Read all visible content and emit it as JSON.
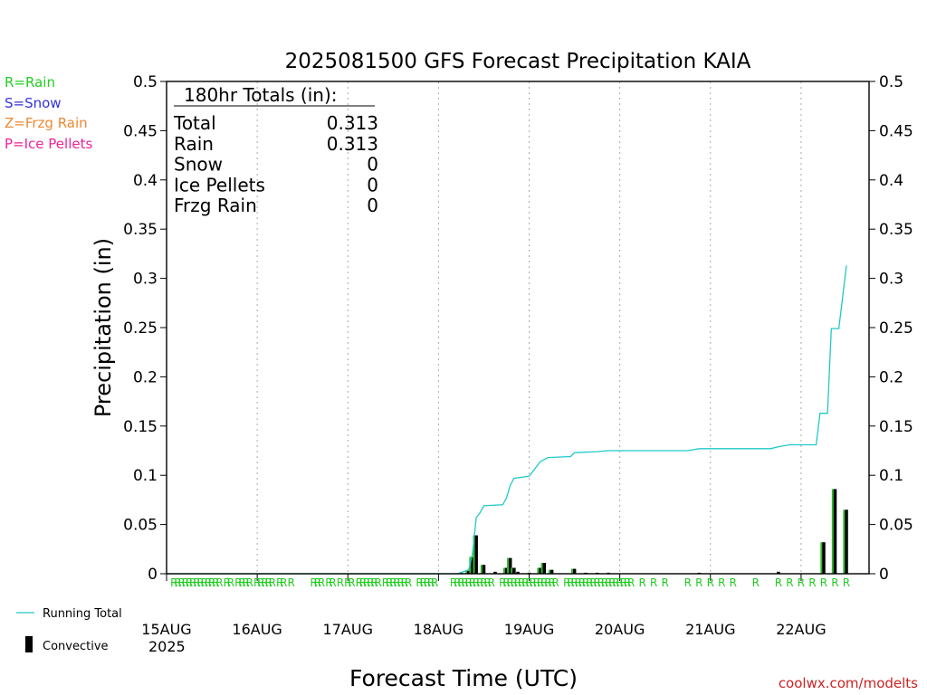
{
  "chart_data": {
    "type": "bar",
    "title": "2025081500 GFS Forecast Precipitation KAIA",
    "xlabel": "Forecast Time (UTC)",
    "ylabel": "Precipitation (in)",
    "ylim": [
      0,
      0.5
    ],
    "xlim_hours": [
      0,
      186
    ],
    "y_ticks": [
      "0",
      "0.05",
      "0.1",
      "0.15",
      "0.2",
      "0.25",
      "0.3",
      "0.35",
      "0.4",
      "0.45",
      "0.5"
    ],
    "x_ticks": [
      {
        "label": "15AUG",
        "hour": 0
      },
      {
        "label": "16AUG",
        "hour": 24
      },
      {
        "label": "17AUG",
        "hour": 48
      },
      {
        "label": "18AUG",
        "hour": 72
      },
      {
        "label": "19AUG",
        "hour": 96
      },
      {
        "label": "20AUG",
        "hour": 120
      },
      {
        "label": "21AUG",
        "hour": 144
      },
      {
        "label": "22AUG",
        "hour": 168
      }
    ],
    "year_label": "2025",
    "grid": "vertical dotted at day boundaries",
    "legend_types": [
      {
        "text": "R=Rain",
        "color": "#22cc22"
      },
      {
        "text": "S=Snow",
        "color": "#3333dd"
      },
      {
        "text": "Z=Frzg Rain",
        "color": "#ee8833"
      },
      {
        "text": "P=Ice Pellets",
        "color": "#ee2299"
      }
    ],
    "legend_series": [
      {
        "text": "Running Total",
        "color": "#22c8c8"
      },
      {
        "text": "Convective",
        "color": "#000000"
      }
    ],
    "totals": {
      "header": "180hr Totals (in):",
      "rows": [
        {
          "label": "Total",
          "value": "0.313"
        },
        {
          "label": "Rain",
          "value": "0.313"
        },
        {
          "label": "Snow",
          "value": "0"
        },
        {
          "label": "Ice Pellets",
          "value": "0"
        },
        {
          "label": "Frzg Rain",
          "value": "0"
        }
      ]
    },
    "bars": [
      {
        "hour": 78,
        "value": 0.001
      },
      {
        "hour": 80,
        "value": 0.003
      },
      {
        "hour": 81,
        "value": 0.017
      },
      {
        "hour": 82,
        "value": 0.039
      },
      {
        "hour": 84,
        "value": 0.009
      },
      {
        "hour": 87,
        "value": 0.002
      },
      {
        "hour": 90,
        "value": 0.006
      },
      {
        "hour": 91,
        "value": 0.016
      },
      {
        "hour": 92,
        "value": 0.006
      },
      {
        "hour": 93,
        "value": 0.002
      },
      {
        "hour": 96,
        "value": 0.001
      },
      {
        "hour": 99,
        "value": 0.006
      },
      {
        "hour": 100,
        "value": 0.011
      },
      {
        "hour": 102,
        "value": 0.004
      },
      {
        "hour": 108,
        "value": 0.005
      },
      {
        "hour": 111,
        "value": 0.001
      },
      {
        "hour": 114,
        "value": 0.001
      },
      {
        "hour": 117,
        "value": 0.001
      },
      {
        "hour": 141,
        "value": 0.001
      },
      {
        "hour": 162,
        "value": 0.002
      },
      {
        "hour": 174,
        "value": 0.032
      },
      {
        "hour": 177,
        "value": 0.086
      },
      {
        "hour": 180,
        "value": 0.065
      }
    ],
    "running_total": [
      {
        "hour": 0,
        "value": 0
      },
      {
        "hour": 77,
        "value": 0
      },
      {
        "hour": 80,
        "value": 0.004
      },
      {
        "hour": 81,
        "value": 0.02
      },
      {
        "hour": 82,
        "value": 0.057
      },
      {
        "hour": 83,
        "value": 0.062
      },
      {
        "hour": 84,
        "value": 0.069
      },
      {
        "hour": 89,
        "value": 0.07
      },
      {
        "hour": 90,
        "value": 0.077
      },
      {
        "hour": 91,
        "value": 0.09
      },
      {
        "hour": 92,
        "value": 0.097
      },
      {
        "hour": 96,
        "value": 0.099
      },
      {
        "hour": 99,
        "value": 0.114
      },
      {
        "hour": 100,
        "value": 0.116
      },
      {
        "hour": 101,
        "value": 0.118
      },
      {
        "hour": 107,
        "value": 0.119
      },
      {
        "hour": 108,
        "value": 0.123
      },
      {
        "hour": 114,
        "value": 0.124
      },
      {
        "hour": 117,
        "value": 0.125
      },
      {
        "hour": 138,
        "value": 0.125
      },
      {
        "hour": 141,
        "value": 0.127
      },
      {
        "hour": 160,
        "value": 0.127
      },
      {
        "hour": 162,
        "value": 0.129
      },
      {
        "hour": 165,
        "value": 0.131
      },
      {
        "hour": 172,
        "value": 0.131
      },
      {
        "hour": 173,
        "value": 0.163
      },
      {
        "hour": 175,
        "value": 0.163
      },
      {
        "hour": 176,
        "value": 0.249
      },
      {
        "hour": 178,
        "value": 0.249
      },
      {
        "hour": 180,
        "value": 0.313
      }
    ],
    "ptype_marks": {
      "symbol": "R",
      "hours": [
        2,
        3,
        4,
        5,
        6,
        7,
        8,
        9,
        10,
        11,
        12,
        13,
        14,
        16,
        17,
        19,
        20,
        21,
        22,
        24,
        25,
        26,
        27,
        28,
        30,
        31,
        33,
        39,
        40,
        41,
        43,
        44,
        46,
        48,
        49,
        51,
        52,
        53,
        54,
        55,
        56,
        58,
        59,
        60,
        61,
        62,
        63,
        64,
        67,
        68,
        69,
        70,
        71,
        76,
        77,
        78,
        79,
        80,
        81,
        82,
        83,
        84,
        85,
        86,
        89,
        90,
        91,
        92,
        93,
        94,
        95,
        96,
        97,
        98,
        99,
        100,
        101,
        102,
        103,
        106,
        107,
        108,
        109,
        110,
        111,
        112,
        113,
        114,
        115,
        116,
        117,
        118,
        119,
        120,
        121,
        122,
        123,
        126,
        129,
        132,
        138,
        141,
        144,
        147,
        150,
        156,
        162,
        165,
        168,
        171,
        174,
        177,
        180
      ]
    },
    "credit": "coolwx.com/modelts"
  }
}
